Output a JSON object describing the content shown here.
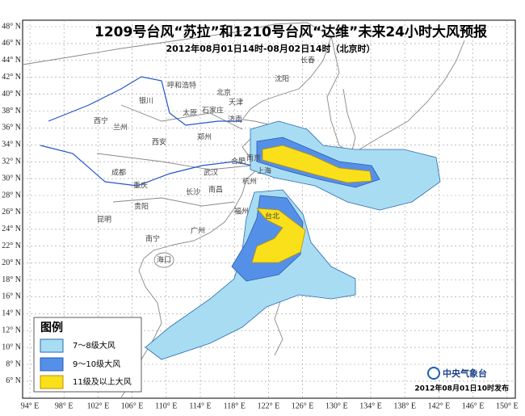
{
  "header": {
    "title": "1209号台风“苏拉”和1210号台风“达维”未来24小时大风预报",
    "subtitle": "2012年08月01日14时-08月02日14时（北京时）"
  },
  "latitude_labels": [
    "48° N",
    "46° N",
    "44° N",
    "42° N",
    "40° N",
    "38° N",
    "36° N",
    "34° N",
    "32° N",
    "30° N",
    "28° N",
    "26° N",
    "24° N",
    "22° N",
    "20° N",
    "18° N",
    "16° N",
    "14° N",
    "12° N",
    "10° N",
    "8° N",
    "6° N"
  ],
  "longitude_labels": [
    "94° E",
    "98° E",
    "102° E",
    "106° E",
    "110° E",
    "114° E",
    "118° E",
    "122° E",
    "126° E",
    "130° E",
    "134° E",
    "138° E",
    "142° E",
    "146° E",
    "150° E"
  ],
  "cities": [
    "沈阳",
    "长春",
    "呼和浩特",
    "北京",
    "天津",
    "石家庄",
    "太原",
    "济南",
    "银川",
    "西宁",
    "兰州",
    "西安",
    "郑州",
    "合肥",
    "南京",
    "上海",
    "武汉",
    "杭州",
    "成都",
    "重庆",
    "长沙",
    "南昌",
    "福州",
    "贵阳",
    "昆明",
    "南宁",
    "广州",
    "台北",
    "海口"
  ],
  "legend": {
    "title": "图例",
    "items": [
      "7～8级大风",
      "9～10级大风",
      "11级及以上大风"
    ]
  },
  "footer": {
    "agency": "中央气象台",
    "issued": "2012年08月01日10时发布"
  }
}
